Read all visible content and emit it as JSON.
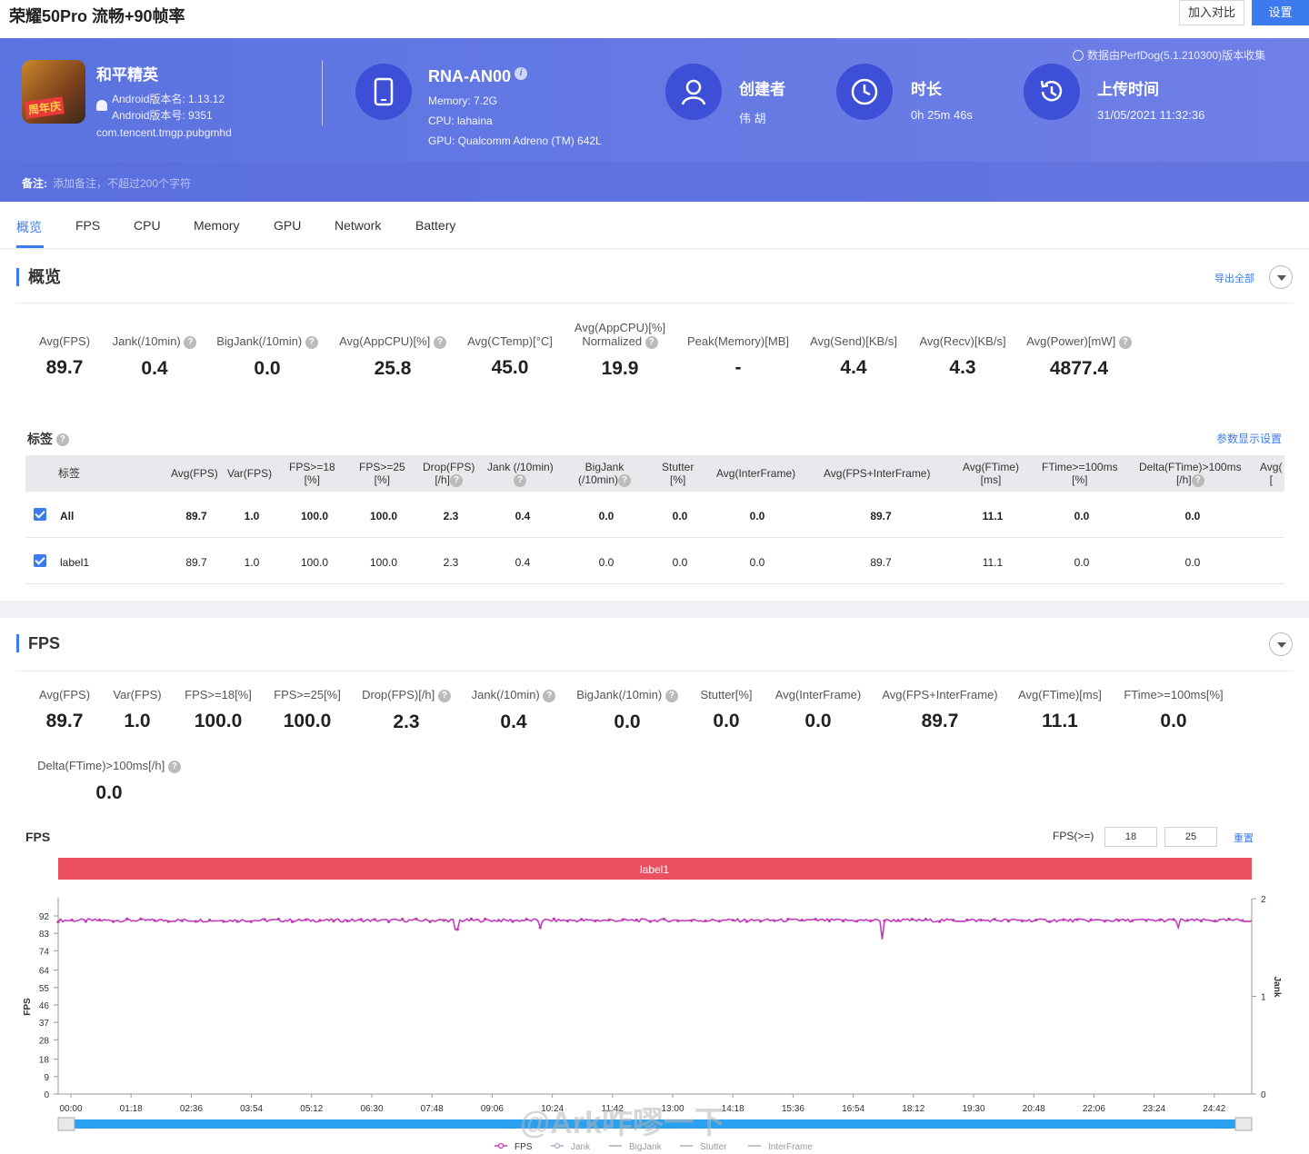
{
  "header": {
    "title": "荣耀50Pro 流畅+90帧率",
    "compare_label": "加入对比",
    "settings_label": "设置"
  },
  "app": {
    "name": "和平精英",
    "version_name": "Android版本名: 1.13.12",
    "version_code": "Android版本号: 9351",
    "package": "com.tencent.tmgp.pubgmhd",
    "icon_badge": "周年庆"
  },
  "device": {
    "model": "RNA-AN00",
    "info_glyph": "i",
    "memory": "Memory: 7.2G",
    "cpu": "CPU: lahaina",
    "gpu": "GPU: Qualcomm Adreno (TM) 642L"
  },
  "creator": {
    "label": "创建者",
    "value": "伟 胡"
  },
  "duration": {
    "label": "时长",
    "value": "0h 25m 46s"
  },
  "upload": {
    "label": "上传时间",
    "value": "31/05/2021 11:32:36"
  },
  "collect_note": "数据由PerfDog(5.1.210300)版本收集",
  "note": {
    "label": "备注:",
    "placeholder": "添加备注，不超过200个字符"
  },
  "tabs": [
    "概览",
    "FPS",
    "CPU",
    "Memory",
    "GPU",
    "Network",
    "Battery"
  ],
  "overview": {
    "title": "概览",
    "export_label": "导出全部",
    "stats": [
      {
        "label": "Avg(FPS)",
        "value": "89.7"
      },
      {
        "label": "Jank(/10min)",
        "value": "0.4"
      },
      {
        "label": "BigJank(/10min)",
        "value": "0.0"
      },
      {
        "label": "Avg(AppCPU)[%]",
        "value": "25.8"
      },
      {
        "label": "Avg(CTemp)[°C]",
        "value": "45.0"
      },
      {
        "label": "Avg(AppCPU)[%]",
        "label2": "Normalized",
        "value": "19.9"
      },
      {
        "label": "Peak(Memory)[MB]",
        "value": "-"
      },
      {
        "label": "Avg(Send)[KB/s]",
        "value": "4.4"
      },
      {
        "label": "Avg(Recv)[KB/s]",
        "value": "4.3"
      },
      {
        "label": "Avg(Power)[mW]",
        "value": "4877.4"
      }
    ],
    "tags_title": "标签",
    "param_settings": "参数显示设置",
    "table": {
      "headers": [
        [
          "标签"
        ],
        [
          "Avg(FPS)"
        ],
        [
          "Var(FPS)"
        ],
        [
          "FPS>=18",
          "[%]"
        ],
        [
          "FPS>=25",
          "[%]"
        ],
        [
          "Drop(FPS)",
          "[/h]"
        ],
        [
          "Jank (/10min)",
          ""
        ],
        [
          "BigJank",
          "(/10min)"
        ],
        [
          "Stutter",
          "[%]"
        ],
        [
          "Avg(InterFrame)"
        ],
        [
          "Avg(FPS+InterFrame)"
        ],
        [
          "Avg(FTime)",
          "[ms]"
        ],
        [
          "FTime>=100ms",
          "[%]"
        ],
        [
          "Delta(FTime)>100ms",
          "[/h]"
        ],
        [
          "Avg(",
          "["
        ]
      ],
      "rows": [
        {
          "name": "All",
          "cells": [
            "89.7",
            "1.0",
            "100.0",
            "100.0",
            "2.3",
            "0.4",
            "0.0",
            "0.0",
            "0.0",
            "89.7",
            "11.1",
            "0.0",
            "0.0"
          ]
        },
        {
          "name": "label1",
          "cells": [
            "89.7",
            "1.0",
            "100.0",
            "100.0",
            "2.3",
            "0.4",
            "0.0",
            "0.0",
            "0.0",
            "89.7",
            "11.1",
            "0.0",
            "0.0"
          ]
        }
      ]
    }
  },
  "fps_section": {
    "title": "FPS",
    "stats": [
      {
        "label": "Avg(FPS)",
        "value": "89.7"
      },
      {
        "label": "Var(FPS)",
        "value": "1.0"
      },
      {
        "label": "FPS>=18[%]",
        "value": "100.0"
      },
      {
        "label": "FPS>=25[%]",
        "value": "100.0"
      },
      {
        "label": "Drop(FPS)[/h]",
        "value": "2.3"
      },
      {
        "label": "Jank(/10min)",
        "value": "0.4"
      },
      {
        "label": "BigJank(/10min)",
        "value": "0.0"
      },
      {
        "label": "Stutter[%]",
        "value": "0.0"
      },
      {
        "label": "Avg(InterFrame)",
        "value": "0.0"
      },
      {
        "label": "Avg(FPS+InterFrame)",
        "value": "89.7"
      },
      {
        "label": "Avg(FTime)[ms]",
        "value": "11.1"
      },
      {
        "label": "FTime>=100ms[%]",
        "value": "0.0"
      },
      {
        "label": "Delta(FTime)>100ms[/h]",
        "value": "0.0"
      }
    ],
    "chart_title": "FPS",
    "threshold_label": "FPS(>=)",
    "threshold_1": "18",
    "threshold_2": "25",
    "reset_label": "重置",
    "label_bar": "label1"
  },
  "chart_data": {
    "type": "line",
    "title": "FPS",
    "ylabel": "FPS",
    "y2label": "Jank",
    "ylim": [
      0,
      92
    ],
    "y2lim": [
      0,
      2
    ],
    "y_ticks": [
      "0",
      "9",
      "18",
      "28",
      "37",
      "46",
      "55",
      "64",
      "74",
      "83",
      "92"
    ],
    "y2_ticks": [
      "0",
      "1",
      "2"
    ],
    "x_ticks": [
      "00:00",
      "01:18",
      "02:36",
      "03:54",
      "05:12",
      "06:30",
      "07:48",
      "09:06",
      "10:24",
      "11:42",
      "13:00",
      "14:18",
      "15:36",
      "16:54",
      "18:12",
      "19:30",
      "20:48",
      "22:06",
      "23:24",
      "24:42"
    ],
    "series": [
      {
        "name": "FPS",
        "color": "#c43bb8",
        "baseline": 89.7,
        "dips": [
          [
            8.6,
            85
          ],
          [
            10.4,
            86
          ],
          [
            17.8,
            80
          ],
          [
            24.2,
            86
          ]
        ]
      },
      {
        "name": "Jank",
        "color": "#aab0c0"
      },
      {
        "name": "BigJank",
        "color": "#aab0c0"
      },
      {
        "name": "Stutter",
        "color": "#aab0c0"
      },
      {
        "name": "InterFrame",
        "color": "#aab0c0"
      }
    ],
    "duration_min": 25.77,
    "watermark": "@Ark咋嘐一下"
  },
  "colors": {
    "accent": "#3c7af0",
    "banner": "#6479e4",
    "label_bar": "#ec5060",
    "fps_line": "#c43bb8"
  }
}
